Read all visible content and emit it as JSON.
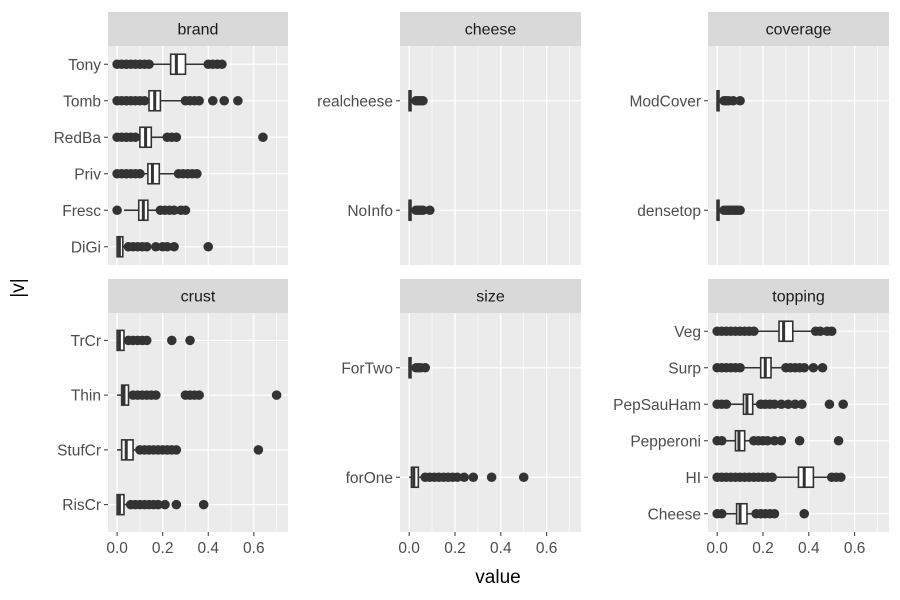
{
  "chart_data": {
    "type": "boxplot",
    "xlabel": "value",
    "ylabel": "|v|",
    "xlim": [
      -0.04,
      0.75
    ],
    "x_ticks": [
      "0.0",
      "0.2",
      "0.4",
      "0.6"
    ],
    "panels": [
      {
        "facet": "brand",
        "categories": [
          {
            "name": "Tony",
            "q1": 0.235,
            "median": 0.26,
            "q3": 0.3,
            "lower": 0.0,
            "upper": 0.39,
            "outliers": [
              0.0,
              0.02,
              0.04,
              0.06,
              0.08,
              0.1,
              0.12,
              0.14,
              0.4,
              0.42,
              0.44,
              0.46
            ]
          },
          {
            "name": "Tomb",
            "q1": 0.14,
            "median": 0.165,
            "q3": 0.19,
            "lower": 0.0,
            "upper": 0.28,
            "outliers": [
              0.0,
              0.02,
              0.04,
              0.06,
              0.08,
              0.1,
              0.12,
              0.3,
              0.32,
              0.34,
              0.36,
              0.42,
              0.47,
              0.53
            ]
          },
          {
            "name": "RedBa",
            "q1": 0.1,
            "median": 0.125,
            "q3": 0.15,
            "lower": 0.0,
            "upper": 0.21,
            "outliers": [
              0.0,
              0.02,
              0.04,
              0.06,
              0.08,
              0.22,
              0.24,
              0.26,
              0.64
            ]
          },
          {
            "name": "Priv",
            "q1": 0.135,
            "median": 0.155,
            "q3": 0.185,
            "lower": 0.0,
            "upper": 0.26,
            "outliers": [
              0.0,
              0.02,
              0.04,
              0.06,
              0.08,
              0.1,
              0.27,
              0.29,
              0.31,
              0.33,
              0.35
            ]
          },
          {
            "name": "Fresc",
            "q1": 0.095,
            "median": 0.115,
            "q3": 0.135,
            "lower": 0.03,
            "upper": 0.18,
            "outliers": [
              0.0,
              0.19,
              0.21,
              0.23,
              0.25,
              0.28,
              0.3
            ]
          },
          {
            "name": "DiGi",
            "q1": 0.0,
            "median": 0.01,
            "q3": 0.025,
            "lower": 0.0,
            "upper": 0.04,
            "outliers": [
              0.05,
              0.07,
              0.09,
              0.11,
              0.13,
              0.17,
              0.2,
              0.22,
              0.25,
              0.4
            ]
          }
        ]
      },
      {
        "facet": "cheese",
        "categories": [
          {
            "name": "realcheese",
            "q1": 0.0,
            "median": 0.003,
            "q3": 0.008,
            "lower": 0.0,
            "upper": 0.02,
            "outliers": [
              0.03,
              0.04,
              0.05,
              0.06
            ]
          },
          {
            "name": "NoInfo",
            "q1": 0.0,
            "median": 0.003,
            "q3": 0.008,
            "lower": 0.0,
            "upper": 0.02,
            "outliers": [
              0.03,
              0.04,
              0.05,
              0.06,
              0.09
            ]
          }
        ]
      },
      {
        "facet": "coverage",
        "categories": [
          {
            "name": "ModCover",
            "q1": 0.0,
            "median": 0.003,
            "q3": 0.008,
            "lower": 0.0,
            "upper": 0.02,
            "outliers": [
              0.03,
              0.04,
              0.05,
              0.07,
              0.1
            ]
          },
          {
            "name": "densetop",
            "q1": 0.0,
            "median": 0.003,
            "q3": 0.008,
            "lower": 0.0,
            "upper": 0.02,
            "outliers": [
              0.03,
              0.04,
              0.05,
              0.06,
              0.07,
              0.08,
              0.09,
              0.1
            ]
          }
        ]
      },
      {
        "facet": "crust",
        "categories": [
          {
            "name": "TrCr",
            "q1": 0.0,
            "median": 0.01,
            "q3": 0.03,
            "lower": 0.0,
            "upper": 0.04,
            "outliers": [
              0.05,
              0.07,
              0.09,
              0.11,
              0.13,
              0.24,
              0.32
            ]
          },
          {
            "name": "Thin",
            "q1": 0.02,
            "median": 0.03,
            "q3": 0.05,
            "lower": 0.0,
            "upper": 0.06,
            "outliers": [
              0.07,
              0.09,
              0.11,
              0.13,
              0.15,
              0.17,
              0.3,
              0.32,
              0.34,
              0.36,
              0.7
            ]
          },
          {
            "name": "StufCr",
            "q1": 0.02,
            "median": 0.04,
            "q3": 0.07,
            "lower": 0.0,
            "upper": 0.09,
            "outliers": [
              0.1,
              0.12,
              0.14,
              0.16,
              0.18,
              0.2,
              0.22,
              0.24,
              0.26,
              0.62
            ]
          },
          {
            "name": "RisCr",
            "q1": 0.0,
            "median": 0.01,
            "q3": 0.03,
            "lower": 0.0,
            "upper": 0.05,
            "outliers": [
              0.06,
              0.08,
              0.1,
              0.12,
              0.14,
              0.16,
              0.18,
              0.21,
              0.26,
              0.38
            ]
          }
        ]
      },
      {
        "facet": "size",
        "categories": [
          {
            "name": "ForTwo",
            "q1": 0.0,
            "median": 0.003,
            "q3": 0.008,
            "lower": 0.0,
            "upper": 0.02,
            "outliers": [
              0.03,
              0.04,
              0.05,
              0.07
            ]
          },
          {
            "name": "forOne",
            "q1": 0.01,
            "median": 0.02,
            "q3": 0.04,
            "lower": 0.0,
            "upper": 0.06,
            "outliers": [
              0.07,
              0.09,
              0.11,
              0.13,
              0.15,
              0.17,
              0.19,
              0.21,
              0.24,
              0.28,
              0.36,
              0.5
            ]
          }
        ]
      },
      {
        "facet": "topping",
        "categories": [
          {
            "name": "Veg",
            "q1": 0.27,
            "median": 0.29,
            "q3": 0.33,
            "lower": 0.18,
            "upper": 0.42,
            "outliers": [
              0.0,
              0.02,
              0.04,
              0.06,
              0.08,
              0.1,
              0.12,
              0.14,
              0.16,
              0.43,
              0.45,
              0.48,
              0.5
            ]
          },
          {
            "name": "Surp",
            "q1": 0.19,
            "median": 0.21,
            "q3": 0.235,
            "lower": 0.12,
            "upper": 0.28,
            "outliers": [
              0.0,
              0.02,
              0.04,
              0.06,
              0.08,
              0.1,
              0.3,
              0.32,
              0.34,
              0.36,
              0.38,
              0.42,
              0.46
            ]
          },
          {
            "name": "PepSauHam",
            "q1": 0.115,
            "median": 0.13,
            "q3": 0.155,
            "lower": 0.06,
            "upper": 0.18,
            "outliers": [
              0.0,
              0.02,
              0.04,
              0.19,
              0.21,
              0.23,
              0.25,
              0.28,
              0.31,
              0.34,
              0.37,
              0.49,
              0.55
            ]
          },
          {
            "name": "Pepperoni",
            "q1": 0.08,
            "median": 0.095,
            "q3": 0.12,
            "lower": 0.04,
            "upper": 0.15,
            "outliers": [
              0.0,
              0.02,
              0.16,
              0.18,
              0.2,
              0.22,
              0.25,
              0.28,
              0.36,
              0.53
            ]
          },
          {
            "name": "HI",
            "q1": 0.355,
            "median": 0.38,
            "q3": 0.42,
            "lower": 0.25,
            "upper": 0.49,
            "outliers": [
              0.0,
              0.02,
              0.04,
              0.06,
              0.08,
              0.1,
              0.12,
              0.14,
              0.16,
              0.18,
              0.2,
              0.22,
              0.24,
              0.5,
              0.52,
              0.54
            ]
          },
          {
            "name": "Cheese",
            "q1": 0.085,
            "median": 0.1,
            "q3": 0.13,
            "lower": 0.04,
            "upper": 0.16,
            "outliers": [
              0.0,
              0.02,
              0.17,
              0.19,
              0.21,
              0.23,
              0.25,
              0.38
            ]
          }
        ]
      }
    ]
  }
}
